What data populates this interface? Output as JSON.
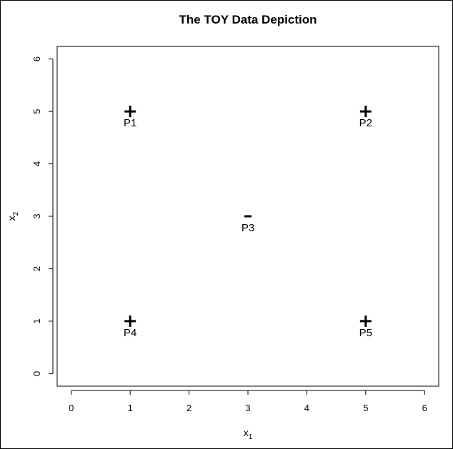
{
  "chart_data": {
    "type": "scatter",
    "title": "The TOY Data Depiction",
    "xlabel": {
      "base": "x",
      "sub": "1"
    },
    "ylabel": {
      "base": "x",
      "sub": "2"
    },
    "xlim": [
      -0.24,
      6.24
    ],
    "ylim": [
      -0.24,
      6.24
    ],
    "x_ticks": [
      0,
      1,
      2,
      3,
      4,
      5,
      6
    ],
    "y_ticks": [
      0,
      1,
      2,
      3,
      4,
      5,
      6
    ],
    "grid": false,
    "points": [
      {
        "label": "P1",
        "x": 1,
        "y": 5,
        "marker": "+"
      },
      {
        "label": "P2",
        "x": 5,
        "y": 5,
        "marker": "+"
      },
      {
        "label": "P3",
        "x": 3,
        "y": 3,
        "marker": "-"
      },
      {
        "label": "P4",
        "x": 1,
        "y": 1,
        "marker": "+"
      },
      {
        "label": "P5",
        "x": 5,
        "y": 1,
        "marker": "+"
      }
    ]
  }
}
